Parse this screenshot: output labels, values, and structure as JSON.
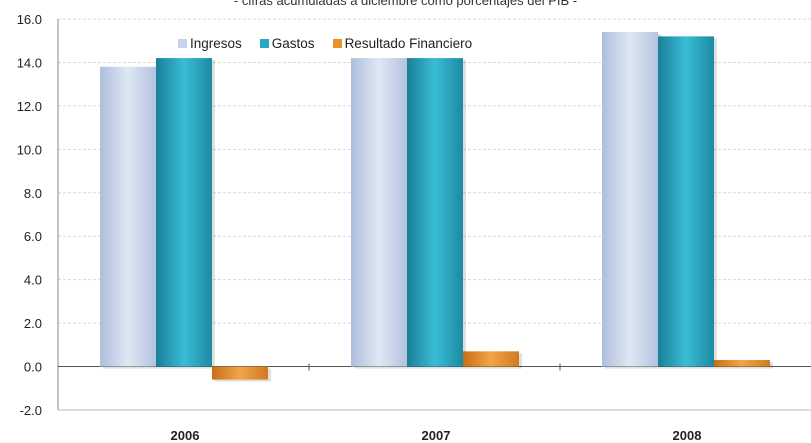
{
  "colors": {
    "ingresos": "#c5d4ea",
    "gastos": "#2aa8c3",
    "resultado": "#e8912a",
    "grid": "#d9d9d9",
    "axis": "#555555"
  },
  "chart_data": {
    "type": "bar",
    "subtitle": "- cifras acumuladas a diciembre como porcentajes del PIB -",
    "categories": [
      "2006",
      "2007",
      "2008"
    ],
    "series": [
      {
        "name": "Ingresos",
        "values": [
          13.8,
          14.2,
          15.4
        ]
      },
      {
        "name": "Gastos",
        "values": [
          14.2,
          14.2,
          15.2
        ]
      },
      {
        "name": "Resultado Financiero",
        "values": [
          -0.6,
          0.7,
          0.3
        ]
      }
    ],
    "ylim": [
      -2.0,
      16.0
    ],
    "yticks": [
      "-2.0",
      "0.0",
      "2.0",
      "4.0",
      "6.0",
      "8.0",
      "10.0",
      "12.0",
      "14.0",
      "16.0"
    ],
    "grid": true,
    "legend_position": "top-inside"
  }
}
